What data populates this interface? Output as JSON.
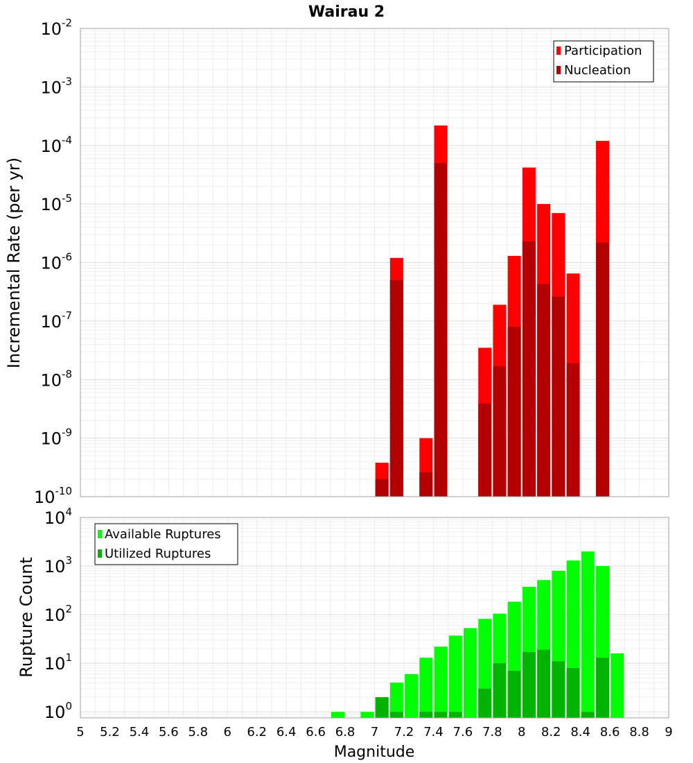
{
  "chart_data": [
    {
      "type": "bar",
      "title": "Wairau 2",
      "xlabel": "",
      "ylabel": "Incremental Rate (per yr)",
      "yscale": "log",
      "ylim": [
        1e-10,
        0.01
      ],
      "xlim": [
        5,
        9
      ],
      "y_tick_labels": [
        {
          "base": "10",
          "exp": "-10"
        },
        {
          "base": "10",
          "exp": "-9"
        },
        {
          "base": "10",
          "exp": "-8"
        },
        {
          "base": "10",
          "exp": "-7"
        },
        {
          "base": "10",
          "exp": "-6"
        },
        {
          "base": "10",
          "exp": "-5"
        },
        {
          "base": "10",
          "exp": "-4"
        },
        {
          "base": "10",
          "exp": "-3"
        },
        {
          "base": "10",
          "exp": "-2"
        }
      ],
      "legend_position": "top-right",
      "grid": true,
      "series": [
        {
          "name": "Participation",
          "color": "#ff0000",
          "points": [
            {
              "x": 7.05,
              "y": 3.8e-10
            },
            {
              "x": 7.15,
              "y": 1.2e-06
            },
            {
              "x": 7.35,
              "y": 1e-09
            },
            {
              "x": 7.45,
              "y": 0.00022
            },
            {
              "x": 7.75,
              "y": 3.5e-08
            },
            {
              "x": 7.85,
              "y": 1.9e-07
            },
            {
              "x": 7.95,
              "y": 1.3e-06
            },
            {
              "x": 8.05,
              "y": 4.2e-05
            },
            {
              "x": 8.15,
              "y": 1e-05
            },
            {
              "x": 8.25,
              "y": 7e-06
            },
            {
              "x": 8.35,
              "y": 6.5e-07
            },
            {
              "x": 8.55,
              "y": 0.00012
            }
          ]
        },
        {
          "name": "Nucleation",
          "color": "#b30000",
          "points": [
            {
              "x": 7.05,
              "y": 2e-10
            },
            {
              "x": 7.15,
              "y": 5e-07
            },
            {
              "x": 7.35,
              "y": 2.6e-10
            },
            {
              "x": 7.45,
              "y": 5e-05
            },
            {
              "x": 7.75,
              "y": 3.9e-09
            },
            {
              "x": 7.85,
              "y": 1.7e-08
            },
            {
              "x": 7.95,
              "y": 8e-08
            },
            {
              "x": 8.05,
              "y": 2.3e-06
            },
            {
              "x": 8.15,
              "y": 4.3e-07
            },
            {
              "x": 8.25,
              "y": 2.6e-07
            },
            {
              "x": 8.35,
              "y": 1.9e-08
            },
            {
              "x": 8.55,
              "y": 2.2e-06
            }
          ]
        }
      ]
    },
    {
      "type": "bar",
      "title": "",
      "xlabel": "Magnitude",
      "ylabel": "Rupture Count",
      "yscale": "log",
      "ylim": [
        0.75,
        10000
      ],
      "xlim": [
        5,
        9
      ],
      "x_ticks": [
        "5",
        "5.2",
        "5.4",
        "5.6",
        "5.8",
        "6",
        "6.2",
        "6.4",
        "6.6",
        "6.8",
        "7",
        "7.2",
        "7.4",
        "7.6",
        "7.8",
        "8",
        "8.2",
        "8.4",
        "8.6",
        "8.8",
        "9"
      ],
      "y_tick_labels": [
        {
          "base": "10",
          "exp": "0"
        },
        {
          "base": "10",
          "exp": "1"
        },
        {
          "base": "10",
          "exp": "2"
        },
        {
          "base": "10",
          "exp": "3"
        },
        {
          "base": "10",
          "exp": "4"
        }
      ],
      "legend_position": "top-left",
      "grid": true,
      "series": [
        {
          "name": "Available Ruptures",
          "color": "#00ff00",
          "points": [
            {
              "x": 6.75,
              "y": 1
            },
            {
              "x": 6.95,
              "y": 1
            },
            {
              "x": 7.05,
              "y": 2
            },
            {
              "x": 7.15,
              "y": 4
            },
            {
              "x": 7.25,
              "y": 6
            },
            {
              "x": 7.35,
              "y": 13
            },
            {
              "x": 7.45,
              "y": 22
            },
            {
              "x": 7.55,
              "y": 37
            },
            {
              "x": 7.65,
              "y": 53
            },
            {
              "x": 7.75,
              "y": 82
            },
            {
              "x": 7.85,
              "y": 105
            },
            {
              "x": 7.95,
              "y": 185
            },
            {
              "x": 8.05,
              "y": 375
            },
            {
              "x": 8.15,
              "y": 515
            },
            {
              "x": 8.25,
              "y": 800
            },
            {
              "x": 8.35,
              "y": 1300
            },
            {
              "x": 8.45,
              "y": 2000
            },
            {
              "x": 8.55,
              "y": 1000
            },
            {
              "x": 8.65,
              "y": 16
            }
          ]
        },
        {
          "name": "Utilized Ruptures",
          "color": "#00b300",
          "points": [
            {
              "x": 7.05,
              "y": 2
            },
            {
              "x": 7.15,
              "y": 1
            },
            {
              "x": 7.35,
              "y": 1
            },
            {
              "x": 7.45,
              "y": 1
            },
            {
              "x": 7.55,
              "y": 1
            },
            {
              "x": 7.75,
              "y": 3
            },
            {
              "x": 7.85,
              "y": 10
            },
            {
              "x": 7.95,
              "y": 7
            },
            {
              "x": 8.05,
              "y": 17
            },
            {
              "x": 8.15,
              "y": 19
            },
            {
              "x": 8.25,
              "y": 11
            },
            {
              "x": 8.35,
              "y": 8
            },
            {
              "x": 8.45,
              "y": 1
            },
            {
              "x": 8.55,
              "y": 13
            }
          ]
        }
      ]
    }
  ]
}
